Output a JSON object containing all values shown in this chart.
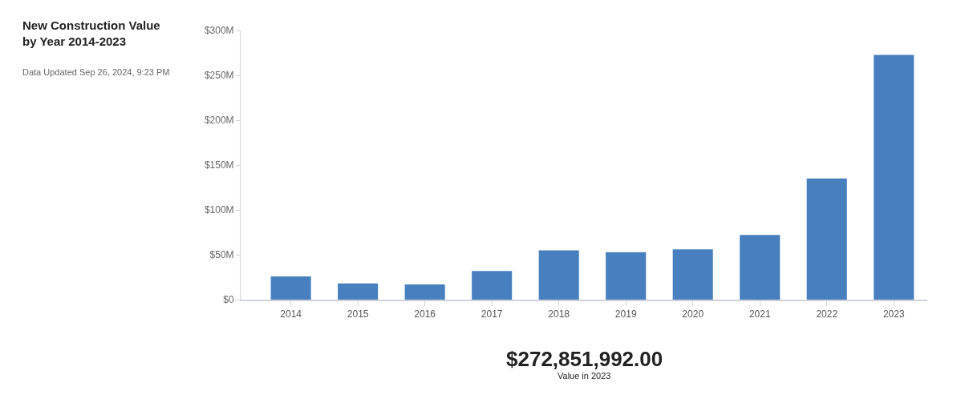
{
  "chart_data": {
    "type": "bar",
    "title": "New Construction Value\nby Year 2014-2023",
    "subtitle": "Data Updated Sep 26, 2024, 9:23 PM",
    "categories": [
      "2014",
      "2015",
      "2016",
      "2017",
      "2018",
      "2019",
      "2020",
      "2021",
      "2022",
      "2023"
    ],
    "series": [
      {
        "color": "#4880bf",
        "values": [
          26000000,
          18000000,
          17000000,
          32000000,
          55000000,
          53000000,
          56000000,
          72000000,
          135000000,
          272851992
        ]
      }
    ],
    "ylim": [
      0,
      300000000
    ],
    "yticks": [
      {
        "value": 0,
        "label": "$0"
      },
      {
        "value": 50000000,
        "label": "$50M"
      },
      {
        "value": 100000000,
        "label": "$100M"
      },
      {
        "value": 150000000,
        "label": "$150M"
      },
      {
        "value": 200000000,
        "label": "$200M"
      },
      {
        "value": 250000000,
        "label": "$250M"
      },
      {
        "value": 300000000,
        "label": "$300M"
      }
    ],
    "annotations": [
      "$272,851,992.00",
      "Value in 2023"
    ]
  }
}
